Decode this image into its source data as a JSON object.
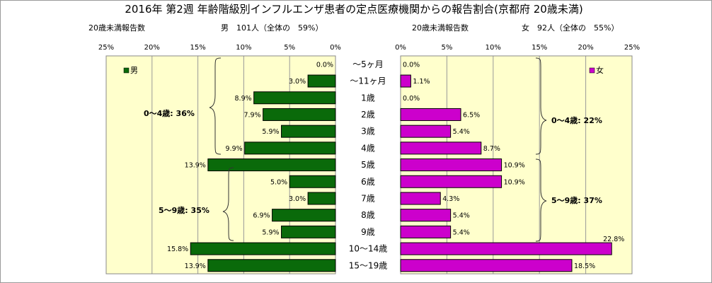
{
  "chart_data": {
    "type": "bar",
    "title": "2016年 第2週 年齢階級別インフルエンザ患者の定点医療機関からの報告割合(京都府 20歳未満)",
    "categories": [
      "～5ヶ月",
      "～11ヶ月",
      "1歳",
      "2歳",
      "3歳",
      "4歳",
      "5歳",
      "6歳",
      "7歳",
      "8歳",
      "9歳",
      "10～14歳",
      "15～19歳"
    ],
    "xlim": [
      0,
      25
    ],
    "ticks": [
      "25%",
      "20%",
      "15%",
      "10%",
      "5%",
      "0%"
    ],
    "ticks_right": [
      "0%",
      "5%",
      "10%",
      "15%",
      "20%",
      "25%"
    ],
    "grid": true,
    "series": [
      {
        "name": "男",
        "color": "#0a6a0a",
        "values": [
          0.0,
          3.0,
          8.9,
          7.9,
          5.9,
          9.9,
          13.9,
          5.0,
          3.0,
          6.9,
          5.9,
          15.8,
          13.9
        ],
        "labels": [
          "0.0%",
          "3.0%",
          "8.9%",
          "7.9%",
          "5.9%",
          "9.9%",
          "13.9%",
          "5.0%",
          "3.0%",
          "6.9%",
          "5.9%",
          "15.8%",
          "13.9%"
        ]
      },
      {
        "name": "女",
        "color": "#cc00cc",
        "values": [
          0.0,
          1.1,
          0.0,
          6.5,
          5.4,
          8.7,
          10.9,
          10.9,
          4.3,
          5.4,
          5.4,
          22.8,
          18.5
        ],
        "labels": [
          "0.0%",
          "1.1%",
          "0.0%",
          "6.5%",
          "5.4%",
          "8.7%",
          "10.9%",
          "10.9%",
          "4.3%",
          "5.4%",
          "5.4%",
          "22.8%",
          "18.5%"
        ]
      }
    ]
  },
  "left_panel": {
    "count_label": "20歳未満報告数",
    "summary": "男　101人（全体の　59%）",
    "legend": "男",
    "group_0_4": "0～4歳: 36%",
    "group_5_9": "5～9歳: 35%"
  },
  "right_panel": {
    "count_label": "20歳未満報告数",
    "summary": "女　92人（全体の　55%）",
    "legend": "女",
    "group_0_4": "0～4歳: 22%",
    "group_5_9": "5～9歳: 37%"
  }
}
